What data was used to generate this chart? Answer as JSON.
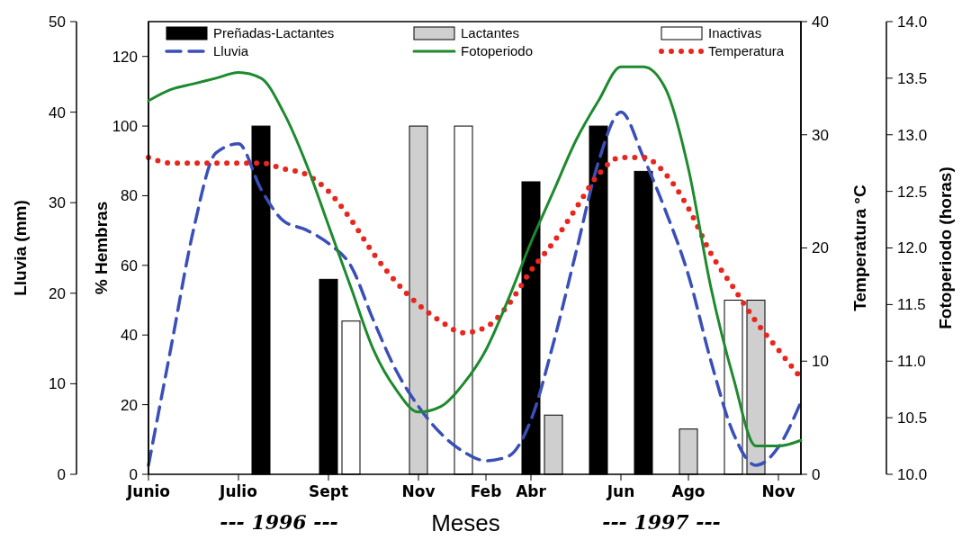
{
  "chart_data": [
    {
      "type": "bar",
      "xlabel": "Meses",
      "ylabel": "% Hembras",
      "y2label": "Lluvia (mm)",
      "y3label": "Temperatura °C",
      "categories": [
        "Junio",
        null,
        null,
        null,
        "Julio",
        null,
        null,
        null,
        "Sept",
        null,
        null,
        null,
        "Nov",
        null,
        null,
        "Feb",
        null,
        "Abr",
        null,
        null,
        null,
        "Jun",
        null,
        null,
        "Ago",
        null,
        null,
        null,
        "Nov",
        null
      ],
      "ylim": [
        0,
        130
      ],
      "yticks": [
        0,
        20,
        40,
        60,
        80,
        100,
        120
      ],
      "y2lim": [
        0,
        50
      ],
      "y2ticks": [
        0,
        10,
        20,
        30,
        40,
        50
      ],
      "y3lim": [
        0,
        40
      ],
      "y3ticks": [
        0,
        10,
        20,
        30,
        40
      ],
      "grid": false,
      "legend": "top",
      "marker": "none",
      "annotations": [
        "--- 1996 ---",
        "--- 1997 ---"
      ],
      "series": [
        {
          "name": "Preñadas-Lactantes",
          "color": "#000000",
          "values": [
            null,
            null,
            null,
            null,
            null,
            100,
            null,
            null,
            56,
            null,
            null,
            null,
            null,
            null,
            null,
            null,
            null,
            84,
            null,
            null,
            100,
            null,
            87,
            null,
            null,
            null,
            null,
            null,
            null,
            null
          ]
        },
        {
          "name": "Lactantes",
          "color": "#cfcfcf",
          "values": [
            null,
            null,
            null,
            null,
            null,
            null,
            null,
            null,
            null,
            null,
            null,
            null,
            100,
            null,
            null,
            null,
            null,
            null,
            17,
            null,
            null,
            null,
            null,
            null,
            13,
            null,
            null,
            50,
            null,
            null
          ]
        },
        {
          "name": "Inactivas",
          "color": "#ffffff",
          "values": [
            null,
            null,
            null,
            null,
            null,
            null,
            null,
            null,
            null,
            44,
            null,
            null,
            null,
            null,
            100,
            null,
            null,
            null,
            null,
            null,
            null,
            null,
            null,
            null,
            null,
            null,
            50,
            null,
            null,
            null
          ]
        },
        {
          "name": "Lluvia",
          "type": "line",
          "axis": "y2",
          "color": "#3a4fb8",
          "line_style": "dashed",
          "values": [
            1,
            14,
            27,
            35.5,
            36.5,
            31.5,
            28,
            27,
            25.5,
            23,
            17,
            11.5,
            7.5,
            4.5,
            2.5,
            1.5,
            2,
            6,
            14.5,
            24.5,
            34.5,
            40,
            35,
            29,
            22,
            12.5,
            4.5,
            1,
            3,
            8
          ]
        },
        {
          "name": "Temperatura",
          "type": "line",
          "axis": "y3",
          "color": "#e8261e",
          "line_style": "dotted",
          "values": [
            28,
            27.5,
            27.5,
            27.5,
            27.5,
            27.5,
            27,
            26.5,
            25,
            22.5,
            19.5,
            17,
            15,
            13.5,
            12.5,
            13,
            15,
            18,
            20.5,
            23.5,
            26.5,
            28,
            28,
            26.5,
            23.5,
            19.5,
            16.5,
            13.5,
            11,
            8.5
          ]
        }
      ]
    },
    {
      "type": "line",
      "ylabel": "Fotoperiodo (horas)",
      "tick_labels": "y",
      "legend": "top",
      "marker": "none",
      "categories": [
        null,
        null,
        null,
        null,
        null,
        null,
        null,
        null,
        null,
        null,
        null,
        null,
        null,
        null,
        null,
        null,
        null,
        null,
        null,
        null,
        null,
        null,
        null,
        null,
        null,
        null,
        null,
        null,
        null,
        null
      ],
      "ylim": [
        10,
        14
      ],
      "yticks": [
        {
          "value": 10,
          "label": "10.0"
        },
        {
          "value": 10.5,
          "label": "10.5"
        },
        {
          "value": 11,
          "label": "11.0"
        },
        {
          "value": 11.5,
          "label": "11.5"
        },
        {
          "value": 12,
          "label": "12.0"
        },
        {
          "value": 12.5,
          "label": "12.5"
        },
        {
          "value": 13,
          "label": "13.0"
        },
        {
          "value": 13.5,
          "label": "13.5"
        },
        {
          "value": 14,
          "label": "14.0"
        }
      ],
      "series": [
        {
          "name": "Fotoperiodo",
          "color": "#1e8a2e",
          "line_style": "solid",
          "values": [
            13.3,
            13.4,
            13.45,
            13.5,
            13.55,
            13.5,
            13.2,
            12.75,
            12.2,
            11.65,
            11.1,
            10.75,
            10.55,
            10.6,
            10.8,
            11.1,
            11.55,
            12.05,
            12.5,
            12.95,
            13.3,
            13.6,
            13.6,
            13.4,
            12.7,
            11.65,
            10.85,
            10.25,
            10.25,
            10.3
          ]
        }
      ]
    }
  ]
}
